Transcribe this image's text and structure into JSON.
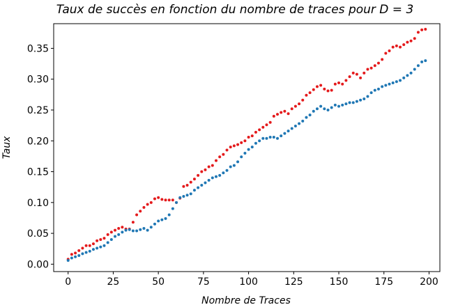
{
  "chart_data": {
    "type": "scatter",
    "title": "Taux de succès en fonction du nombre de traces pour D = 3",
    "xlabel": "Nombre de Traces",
    "ylabel": "Taux",
    "xlim": [
      -8,
      206
    ],
    "ylim": [
      -0.012,
      0.39
    ],
    "xticks": [
      0,
      25,
      50,
      75,
      100,
      125,
      150,
      175,
      200
    ],
    "yticks": [
      0.0,
      0.05,
      0.1,
      0.15,
      0.2,
      0.25,
      0.3,
      0.35
    ],
    "ytick_labels": [
      "0.00",
      "0.05",
      "0.10",
      "0.15",
      "0.20",
      "0.25",
      "0.30",
      "0.35"
    ],
    "grid": false,
    "legend": "none",
    "series": [
      {
        "color": "#e41a1c",
        "x": [
          0,
          2,
          4,
          6,
          8,
          10,
          12,
          14,
          16,
          18,
          20,
          22,
          24,
          26,
          28,
          30,
          32,
          34,
          36,
          38,
          40,
          42,
          44,
          46,
          48,
          50,
          52,
          54,
          56,
          58,
          60,
          62,
          64,
          66,
          68,
          70,
          72,
          74,
          76,
          78,
          80,
          82,
          84,
          86,
          88,
          90,
          92,
          94,
          96,
          98,
          100,
          102,
          104,
          106,
          108,
          110,
          112,
          114,
          116,
          118,
          120,
          122,
          124,
          126,
          128,
          130,
          132,
          134,
          136,
          138,
          140,
          142,
          144,
          146,
          148,
          150,
          152,
          154,
          156,
          158,
          160,
          162,
          164,
          166,
          168,
          170,
          172,
          174,
          176,
          178,
          180,
          182,
          184,
          186,
          188,
          190,
          192,
          194,
          196,
          198
        ],
        "y": [
          0.008,
          0.016,
          0.018,
          0.022,
          0.026,
          0.03,
          0.03,
          0.033,
          0.038,
          0.04,
          0.042,
          0.048,
          0.052,
          0.055,
          0.058,
          0.06,
          0.057,
          0.057,
          0.068,
          0.08,
          0.086,
          0.092,
          0.097,
          0.1,
          0.106,
          0.108,
          0.105,
          0.104,
          0.104,
          0.104,
          0.1,
          0.107,
          0.126,
          0.128,
          0.133,
          0.138,
          0.144,
          0.15,
          0.153,
          0.158,
          0.16,
          0.168,
          0.174,
          0.178,
          0.185,
          0.19,
          0.192,
          0.194,
          0.197,
          0.2,
          0.206,
          0.208,
          0.214,
          0.218,
          0.222,
          0.226,
          0.23,
          0.24,
          0.243,
          0.246,
          0.248,
          0.244,
          0.252,
          0.256,
          0.26,
          0.266,
          0.274,
          0.278,
          0.283,
          0.288,
          0.29,
          0.284,
          0.281,
          0.282,
          0.292,
          0.294,
          0.292,
          0.298,
          0.304,
          0.31,
          0.308,
          0.302,
          0.31,
          0.316,
          0.318,
          0.322,
          0.326,
          0.332,
          0.342,
          0.346,
          0.352,
          0.354,
          0.352,
          0.356,
          0.36,
          0.362,
          0.366,
          0.376,
          0.38,
          0.381
        ]
      },
      {
        "color": "#1f77b4",
        "x": [
          0,
          2,
          4,
          6,
          8,
          10,
          12,
          14,
          16,
          18,
          20,
          22,
          24,
          26,
          28,
          30,
          32,
          34,
          36,
          38,
          40,
          42,
          44,
          46,
          48,
          50,
          52,
          54,
          56,
          58,
          60,
          62,
          64,
          66,
          68,
          70,
          72,
          74,
          76,
          78,
          80,
          82,
          84,
          86,
          88,
          90,
          92,
          94,
          96,
          98,
          100,
          102,
          104,
          106,
          108,
          110,
          112,
          114,
          116,
          118,
          120,
          122,
          124,
          126,
          128,
          130,
          132,
          134,
          136,
          138,
          140,
          142,
          144,
          146,
          148,
          150,
          152,
          154,
          156,
          158,
          160,
          162,
          164,
          166,
          168,
          170,
          172,
          174,
          176,
          178,
          180,
          182,
          184,
          186,
          188,
          190,
          192,
          194,
          196,
          198
        ],
        "y": [
          0.006,
          0.01,
          0.012,
          0.014,
          0.017,
          0.019,
          0.021,
          0.024,
          0.026,
          0.028,
          0.03,
          0.035,
          0.04,
          0.045,
          0.048,
          0.052,
          0.055,
          0.056,
          0.054,
          0.054,
          0.056,
          0.058,
          0.055,
          0.06,
          0.065,
          0.07,
          0.072,
          0.074,
          0.08,
          0.09,
          0.1,
          0.108,
          0.11,
          0.112,
          0.114,
          0.12,
          0.124,
          0.128,
          0.132,
          0.136,
          0.14,
          0.142,
          0.144,
          0.148,
          0.152,
          0.158,
          0.16,
          0.166,
          0.174,
          0.18,
          0.186,
          0.19,
          0.196,
          0.2,
          0.204,
          0.204,
          0.206,
          0.206,
          0.204,
          0.208,
          0.212,
          0.216,
          0.22,
          0.224,
          0.228,
          0.232,
          0.238,
          0.242,
          0.248,
          0.252,
          0.256,
          0.252,
          0.25,
          0.254,
          0.258,
          0.256,
          0.258,
          0.26,
          0.262,
          0.262,
          0.264,
          0.266,
          0.268,
          0.272,
          0.278,
          0.282,
          0.284,
          0.288,
          0.29,
          0.292,
          0.294,
          0.296,
          0.298,
          0.302,
          0.306,
          0.31,
          0.316,
          0.322,
          0.328,
          0.33
        ]
      }
    ]
  }
}
